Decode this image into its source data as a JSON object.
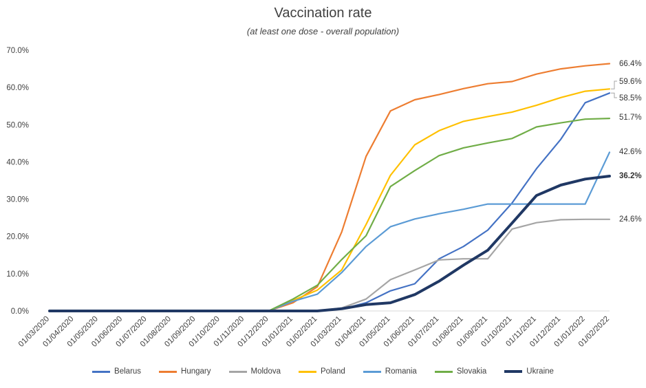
{
  "chart_data": {
    "type": "line",
    "title": "Vaccination rate",
    "subtitle": "(at least one dose - overall population)",
    "ylim": [
      0,
      70
    ],
    "yticks": [
      "0.0%",
      "10.0%",
      "20.0%",
      "30.0%",
      "40.0%",
      "50.0%",
      "60.0%",
      "70.0%"
    ],
    "categories": [
      "01/03/2020",
      "01/04/2020",
      "01/05/2020",
      "01/06/2020",
      "01/07/2020",
      "01/08/2020",
      "01/09/2020",
      "01/10/2020",
      "01/11/2020",
      "01/12/2020",
      "01/01/2021",
      "01/02/2021",
      "01/03/2021",
      "01/04/2021",
      "01/05/2021",
      "01/06/2021",
      "01/07/2021",
      "01/08/2021",
      "01/09/2021",
      "01/10/2021",
      "01/11/2021",
      "01/12/2021",
      "01/01/2022",
      "01/02/2022"
    ],
    "grid": false,
    "legend_position": "bottom",
    "series": [
      {
        "name": "Belarus",
        "color": "#4472C4",
        "bold": false,
        "end_label": "58.5%",
        "values": [
          0,
          0,
          0,
          0,
          0,
          0,
          0,
          0,
          0,
          0,
          0,
          0,
          0.5,
          2.2,
          5.4,
          7.3,
          14.0,
          17.3,
          21.7,
          29.0,
          38.2,
          46.1,
          55.9,
          58.5
        ]
      },
      {
        "name": "Hungary",
        "color": "#ED7D31",
        "bold": false,
        "end_label": "66.4%",
        "values": [
          0,
          0,
          0,
          0,
          0,
          0,
          0,
          0,
          0,
          0,
          2.2,
          6.5,
          21.2,
          41.5,
          53.7,
          56.7,
          58.1,
          59.7,
          61.0,
          61.6,
          63.6,
          65.0,
          65.8,
          66.4
        ]
      },
      {
        "name": "Moldova",
        "color": "#A5A5A5",
        "bold": false,
        "end_label": "24.6%",
        "values": [
          0,
          0,
          0,
          0,
          0,
          0,
          0,
          0,
          0,
          0,
          0,
          0,
          0.8,
          3.2,
          8.4,
          11.0,
          13.7,
          14.0,
          14.0,
          22.0,
          23.7,
          24.5,
          24.6,
          24.6
        ]
      },
      {
        "name": "Poland",
        "color": "#FFC000",
        "bold": false,
        "end_label": "59.6%",
        "values": [
          0,
          0,
          0,
          0,
          0,
          0,
          0,
          0,
          0,
          0,
          2.8,
          5.6,
          11.0,
          23.2,
          36.4,
          44.6,
          48.4,
          50.9,
          52.2,
          53.4,
          55.2,
          57.3,
          59.0,
          59.6
        ]
      },
      {
        "name": "Romania",
        "color": "#5B9BD5",
        "bold": false,
        "end_label": "42.6%",
        "values": [
          0,
          0,
          0,
          0,
          0,
          0,
          0,
          0,
          0,
          0,
          2.6,
          4.5,
          10.3,
          17.3,
          22.6,
          24.7,
          26.1,
          27.3,
          28.7,
          28.7,
          28.7,
          28.7,
          28.7,
          42.6
        ]
      },
      {
        "name": "Slovakia",
        "color": "#70AD47",
        "bold": false,
        "end_label": "51.7%",
        "values": [
          0,
          0,
          0,
          0,
          0,
          0,
          0,
          0,
          0,
          0,
          3.2,
          6.9,
          13.8,
          20.2,
          33.4,
          37.7,
          41.7,
          43.8,
          45.1,
          46.3,
          49.4,
          50.5,
          51.5,
          51.7
        ]
      },
      {
        "name": "Ukraine",
        "color": "#203864",
        "bold": true,
        "end_label": "36.2%",
        "values": [
          0,
          0,
          0,
          0,
          0,
          0,
          0,
          0,
          0,
          0,
          0,
          0,
          0.6,
          1.7,
          2.2,
          4.4,
          8.0,
          12.3,
          16.3,
          23.6,
          31.0,
          33.8,
          35.4,
          36.2
        ]
      }
    ]
  }
}
